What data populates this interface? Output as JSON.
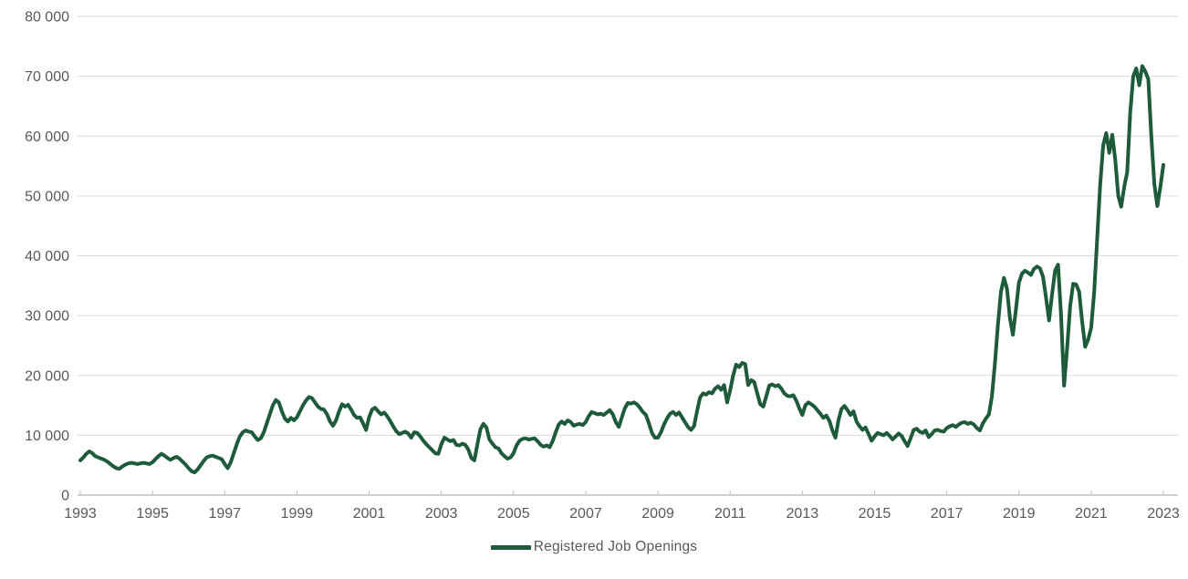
{
  "page": {
    "background": "#FFFFFF"
  },
  "colors": {
    "series_line": "#1E5B3A",
    "gridline": "#D9D9D9",
    "axis_line": "#BFBFBF",
    "axis_text": "#595959"
  },
  "chart_data": {
    "type": "line",
    "title": "",
    "grid": "horizontal",
    "legend": {
      "position": "bottom-center",
      "label": "Registered Job Openings"
    },
    "y_axis": {
      "range": [
        0,
        80000
      ],
      "tick_values": [
        0,
        10000,
        20000,
        30000,
        40000,
        50000,
        60000,
        70000,
        80000
      ],
      "tick_labels": [
        "0",
        "10 000",
        "20 000",
        "30 000",
        "40 000",
        "50 000",
        "60 000",
        "70 000",
        "80 000"
      ]
    },
    "x_axis": {
      "range_years": [
        1993,
        2023.4
      ],
      "tick_years": [
        1993,
        1995,
        1997,
        1999,
        2001,
        2003,
        2005,
        2007,
        2009,
        2011,
        2013,
        2015,
        2017,
        2019,
        2021,
        2023
      ],
      "tick_labels": [
        "1993",
        "1995",
        "1997",
        "1999",
        "2001",
        "2003",
        "2005",
        "2007",
        "2009",
        "2011",
        "2013",
        "2015",
        "2017",
        "2019",
        "2021",
        "2023"
      ]
    },
    "series": [
      {
        "name": "Registered Job Openings",
        "color": "#1E5B3A",
        "start": "1993-01",
        "frequency": "monthly",
        "values": [
          5800,
          6300,
          6900,
          7300,
          7000,
          6500,
          6300,
          6100,
          5900,
          5600,
          5200,
          4800,
          4500,
          4400,
          4800,
          5100,
          5300,
          5400,
          5300,
          5200,
          5300,
          5400,
          5300,
          5200,
          5500,
          6000,
          6500,
          6900,
          6600,
          6200,
          5900,
          6200,
          6400,
          6100,
          5600,
          5100,
          4500,
          4000,
          3800,
          4300,
          5000,
          5700,
          6300,
          6500,
          6600,
          6400,
          6200,
          6000,
          5200,
          4500,
          5500,
          7000,
          8500,
          9800,
          10500,
          10800,
          10600,
          10500,
          9800,
          9200,
          9500,
          10500,
          12000,
          13500,
          15000,
          15900,
          15500,
          14000,
          12800,
          12300,
          12900,
          12500,
          13000,
          14000,
          15000,
          15800,
          16400,
          16200,
          15500,
          14800,
          14400,
          14300,
          13500,
          12300,
          11600,
          12500,
          14000,
          15200,
          14800,
          15100,
          14300,
          13400,
          12900,
          13000,
          12000,
          10900,
          13000,
          14300,
          14600,
          14000,
          13500,
          13800,
          13200,
          12400,
          11500,
          10700,
          10200,
          10400,
          10600,
          10300,
          9600,
          10500,
          10400,
          9800,
          9100,
          8500,
          8000,
          7500,
          7000,
          6900,
          8500,
          9600,
          9300,
          9000,
          9200,
          8400,
          8300,
          8600,
          8400,
          7600,
          6200,
          5800,
          8500,
          11000,
          11900,
          11300,
          9300,
          8600,
          8000,
          7800,
          7000,
          6500,
          6100,
          6300,
          7000,
          8300,
          9100,
          9400,
          9500,
          9300,
          9400,
          9500,
          9000,
          8400,
          8100,
          8300,
          8000,
          9000,
          10500,
          11800,
          12300,
          11900,
          12500,
          12200,
          11600,
          11800,
          11900,
          11700,
          12200,
          13200,
          13900,
          13700,
          13500,
          13600,
          13400,
          13800,
          14200,
          13500,
          12200,
          11400,
          13000,
          14500,
          15400,
          15300,
          15500,
          15200,
          14600,
          13900,
          13400,
          12000,
          10400,
          9600,
          9600,
          10500,
          11800,
          12800,
          13600,
          13900,
          13400,
          13800,
          13000,
          12200,
          11400,
          10900,
          11500,
          14000,
          16300,
          17000,
          16800,
          17200,
          17000,
          17800,
          18200,
          17600,
          18400,
          15500,
          17500,
          20000,
          21800,
          21400,
          22100,
          21900,
          18400,
          19200,
          18900,
          17000,
          15200,
          14800,
          16500,
          18300,
          18500,
          18200,
          18400,
          17800,
          17000,
          16600,
          16500,
          16700,
          15800,
          14500,
          13400,
          15000,
          15500,
          15200,
          14800,
          14200,
          13600,
          12900,
          13300,
          12400,
          10800,
          9600,
          12500,
          14400,
          14900,
          14200,
          13400,
          14000,
          12300,
          11500,
          10900,
          11300,
          10200,
          9100,
          9800,
          10400,
          10200,
          10000,
          10400,
          9900,
          9300,
          9800,
          10300,
          9900,
          9000,
          8200,
          9500,
          10900,
          11100,
          10600,
          10400,
          10800,
          9700,
          10200,
          10800,
          10900,
          10700,
          10600,
          11200,
          11500,
          11700,
          11400,
          11800,
          12100,
          12200,
          11900,
          12100,
          11800,
          11200,
          10800,
          12000,
          12800,
          13500,
          16500,
          22000,
          28500,
          34000,
          36300,
          34500,
          29500,
          26800,
          31000,
          35500,
          37000,
          37500,
          37200,
          36800,
          37800,
          38200,
          37900,
          36500,
          33000,
          29200,
          33500,
          37500,
          38500,
          30000,
          18300,
          24500,
          31500,
          35300,
          35200,
          34000,
          29000,
          24800,
          26000,
          28000,
          34000,
          43000,
          52000,
          58500,
          60500,
          57200,
          60200,
          56000,
          50000,
          48200,
          51500,
          54000,
          64000,
          70000,
          71300,
          68500,
          71700,
          70800,
          69500,
          60000,
          52000,
          48300,
          51500,
          55200
        ]
      }
    ]
  }
}
